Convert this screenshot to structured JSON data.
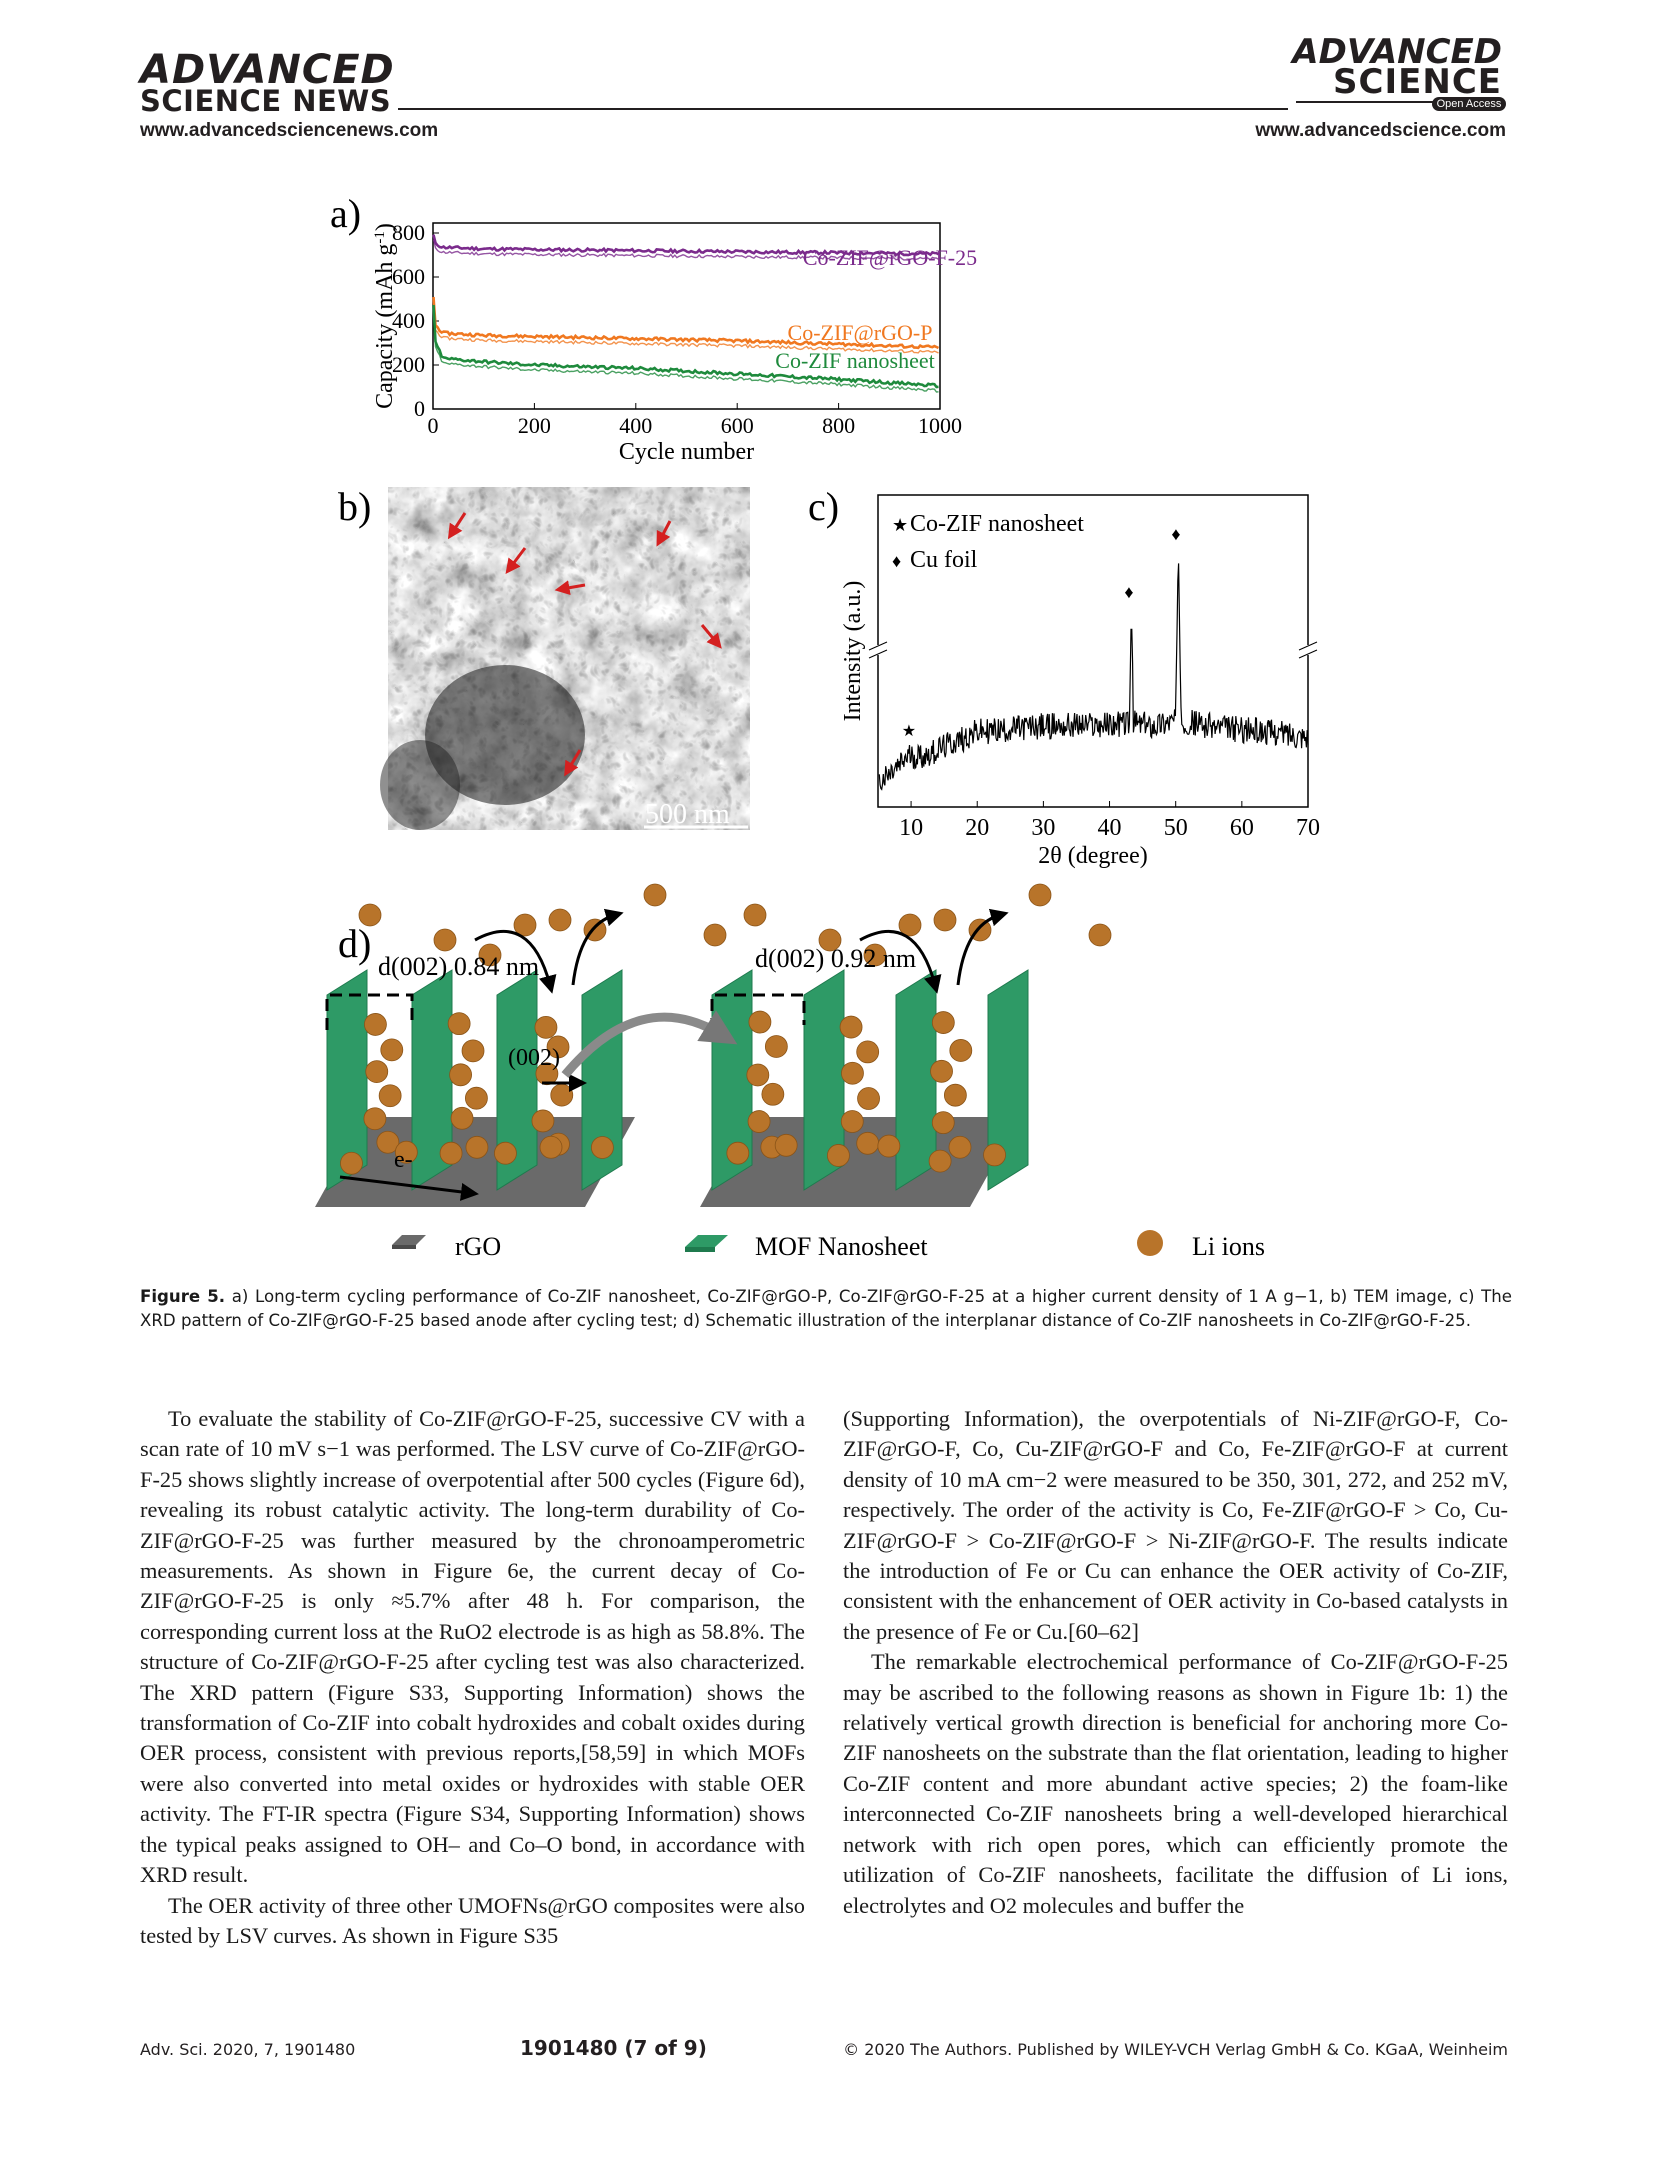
{
  "header": {
    "left_logo_line1": "ADVANCED",
    "left_logo_line2": "SCIENCE NEWS",
    "left_url": "www.advancedsciencenews.com",
    "right_logo_line1": "ADVANCED",
    "right_logo_line2": "SCIENCE",
    "open_access": "Open Access",
    "right_url": "www.advancedscience.com"
  },
  "figure": {
    "panel_a_label": "a)",
    "panel_b_label": "b)",
    "panel_c_label": "c)",
    "panel_d_label": "d)",
    "scale_bar": "500 nm",
    "d_left_spacing": "d(002) 0.84 nm",
    "d_right_spacing": "d(002) 0.92 nm",
    "plane_label": "(002)",
    "electron_label": "e-",
    "legend_rgo": "rGO",
    "legend_mof": "MOF Nanosheet",
    "legend_li": "Li ions",
    "colors": {
      "purple": "#7b2b8c",
      "orange": "#f07820",
      "green": "#1e8a3c",
      "sheet": "#2e9a66",
      "li": "#b8742a",
      "rgo": "#6a6a6a"
    }
  },
  "chart_data": [
    {
      "type": "line",
      "panel": "a)",
      "xlabel": "Cycle number",
      "ylabel": "Capacity (mAh g-1)",
      "xlim": [
        0,
        1000
      ],
      "ylim": [
        0,
        800
      ],
      "xticks": [
        0,
        200,
        400,
        600,
        800,
        1000
      ],
      "yticks": [
        0,
        200,
        400,
        600,
        800
      ],
      "series": [
        {
          "name": "Co-ZIF@rGO-F-25",
          "color": "#7b2b8c",
          "x": [
            1,
            5,
            20,
            100,
            200,
            400,
            600,
            800,
            1000
          ],
          "y": [
            790,
            750,
            735,
            728,
            725,
            720,
            715,
            710,
            705
          ]
        },
        {
          "name": "Co-ZIF@rGO-P",
          "color": "#f07820",
          "x": [
            1,
            5,
            20,
            100,
            200,
            400,
            600,
            800,
            1000
          ],
          "y": [
            510,
            380,
            345,
            335,
            330,
            320,
            310,
            295,
            280
          ]
        },
        {
          "name": "Co-ZIF nanosheet",
          "color": "#1e8a3c",
          "x": [
            1,
            5,
            20,
            100,
            200,
            400,
            600,
            800,
            1000
          ],
          "y": [
            470,
            300,
            230,
            215,
            200,
            185,
            160,
            135,
            105
          ]
        }
      ]
    },
    {
      "type": "line",
      "panel": "c)",
      "xlabel": "2θ (degree)",
      "ylabel": "Intensity (a.u.)",
      "xlim": [
        5,
        70
      ],
      "xticks": [
        10,
        20,
        30,
        40,
        50,
        60,
        70
      ],
      "legend": [
        {
          "marker": "★",
          "label": "Co-ZIF nanosheet"
        },
        {
          "marker": "♦",
          "label": "Cu foil"
        }
      ],
      "series": [
        {
          "name": "",
          "x": [
            5,
            8,
            9.5,
            12,
            20,
            30,
            40,
            43,
            43.3,
            43.6,
            46,
            50,
            50.4,
            50.8,
            55,
            60,
            70
          ],
          "y": [
            0.05,
            0.2,
            0.3,
            0.3,
            0.5,
            0.55,
            0.56,
            0.58,
            1.55,
            0.58,
            0.55,
            0.6,
            2.05,
            0.6,
            0.55,
            0.52,
            0.47
          ]
        }
      ]
    }
  ],
  "caption": {
    "label": "Figure 5.",
    "text": "a) Long-term cycling performance of Co-ZIF nanosheet, Co-ZIF@rGO-P, Co-ZIF@rGO-F-25 at a higher current density of 1 A g−1, b) TEM image, c) The XRD pattern of Co-ZIF@rGO-F-25 based anode after cycling test; d) Schematic illustration of the interplanar distance of Co-ZIF nanosheets in Co-ZIF@rGO-F-25."
  },
  "body": {
    "left_p1": "To evaluate the stability of Co-ZIF@rGO-F-25, successive CV with a scan rate of 10 mV s−1 was performed. The LSV curve of Co-ZIF@rGO-F-25 shows slightly increase of overpotential after 500 cycles (Figure 6d), revealing its robust catalytic activity. The long-term durability of Co-ZIF@rGO-F-25 was further measured by the chronoamperometric measurements. As shown in Figure 6e, the current decay of Co-ZIF@rGO-F-25 is only ≈5.7% after 48 h. For comparison, the corresponding current loss at the RuO2 electrode is as high as 58.8%. The structure of Co-ZIF@rGO-F-25 after cycling test was also characterized. The XRD pattern (Figure S33, Supporting Information) shows the transformation of Co-ZIF into cobalt hydroxides and cobalt oxides during OER process, consistent with previous reports,[58,59] in which MOFs were also converted into metal oxides or hydroxides with stable OER activity. The FT-IR spectra (Figure S34, Supporting Information) shows the typical peaks assigned to OH– and Co–O bond, in accordance with XRD result.",
    "left_p2": "The OER activity of three other UMOFNs@rGO composites were also tested by LSV curves. As shown in Figure S35",
    "right_p1": "(Supporting Information), the overpotentials of Ni-ZIF@rGO-F, Co-ZIF@rGO-F, Co, Cu-ZIF@rGO-F and Co, Fe-ZIF@rGO-F at current density of 10 mA cm−2 were measured to be 350, 301, 272, and 252 mV, respectively. The order of the activity is Co, Fe-ZIF@rGO-F > Co, Cu-ZIF@rGO-F > Co-ZIF@rGO-F > Ni-ZIF@rGO-F. The results indicate the introduction of Fe or Cu can enhance the OER activity of Co-ZIF, consistent with the enhancement of OER activity in Co-based catalysts in the presence of Fe or Cu.[60–62]",
    "right_p2": "The remarkable electrochemical performance of Co-ZIF@rGO-F-25 may be ascribed to the following reasons as shown in Figure 1b: 1) the relatively vertical growth direction is beneficial for anchoring more Co-ZIF nanosheets on the substrate than the flat orientation, leading to higher Co-ZIF content and more abundant active species; 2) the foam-like interconnected Co-ZIF nanosheets bring a well-developed hierarchical network with rich open pores, which can efficiently promote the utilization of Co-ZIF nanosheets, facilitate the diffusion of Li ions, electrolytes and O2 molecules and buffer the"
  },
  "footer": {
    "journal": "Adv. Sci. 2020, 7, 1901480",
    "page": "1901480  (7 of 9)",
    "copyright": "© 2020 The Authors. Published by WILEY-VCH Verlag GmbH & Co. KGaA, Weinheim"
  }
}
